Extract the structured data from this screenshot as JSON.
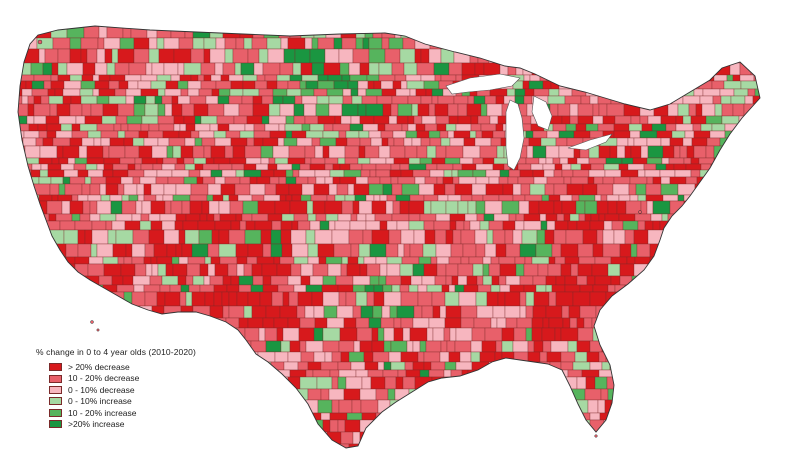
{
  "legend": {
    "title": "% change in  0 to 4 year olds (2010-2020)",
    "items": [
      {
        "label": "> 20% decrease",
        "color": "#d7191c"
      },
      {
        "label": "10 - 20% decrease",
        "color": "#e8606a"
      },
      {
        "label": "0 - 10% decrease",
        "color": "#f7b6bf"
      },
      {
        "label": "0 - 10% increase",
        "color": "#a6d9a3"
      },
      {
        "label": "10 - 20% increase",
        "color": "#56b45d"
      },
      {
        "label": ">20% increase",
        "color": "#1a9641"
      }
    ]
  }
}
